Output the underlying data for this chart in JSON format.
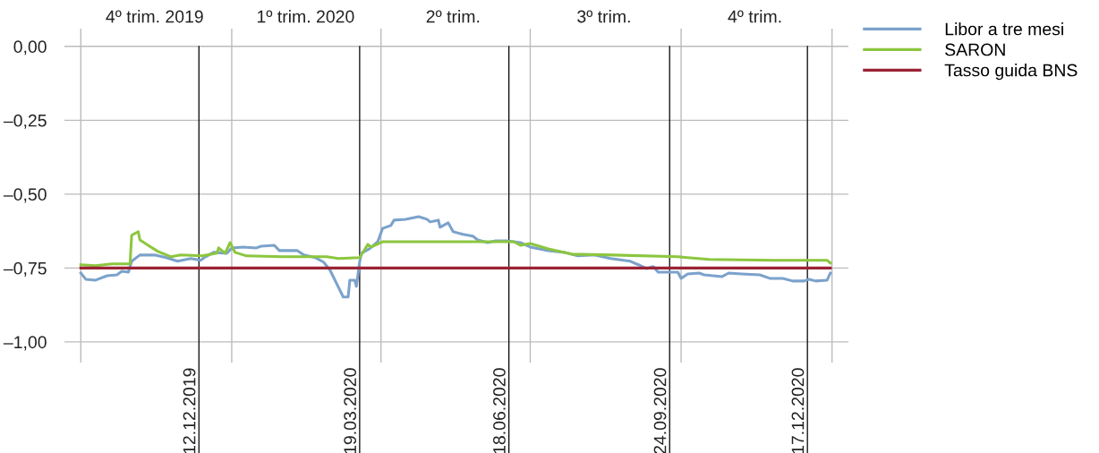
{
  "chart_data": {
    "type": "line",
    "xlim": [
      "2019-09-21",
      "2021-01-11"
    ],
    "ylim": [
      -1.07,
      0.06
    ],
    "xticks": [
      {
        "value": "2019-10-01",
        "label": null
      },
      {
        "value": "2019-11-15",
        "label": "4º trim. 2019"
      },
      {
        "value": "2020-01-01",
        "label": null
      },
      {
        "value": "2020-02-15",
        "label": "1º trim. 2020"
      },
      {
        "value": "2020-04-01",
        "label": null
      },
      {
        "value": "2020-05-15",
        "label": "2º trim."
      },
      {
        "value": "2020-07-01",
        "label": null
      },
      {
        "value": "2020-08-15",
        "label": "3º trim."
      },
      {
        "value": "2020-10-01",
        "label": null
      },
      {
        "value": "2020-11-15",
        "label": "4º trim."
      },
      {
        "value": "2021-01-01",
        "label": null
      }
    ],
    "yticks": [
      {
        "value": 0,
        "label": "0,00"
      },
      {
        "value": -0.25,
        "label": "–0,25"
      },
      {
        "value": -0.5,
        "label": "–0,50"
      },
      {
        "value": -0.75,
        "label": "–0,75"
      },
      {
        "value": -1.0,
        "label": "–1,00"
      }
    ],
    "grid": true,
    "legend": "top right",
    "marker": "none",
    "line_style": "solid",
    "ref_lines": [
      {
        "axis": "x",
        "value": "2019-12-12",
        "label": "12.12.2019",
        "color": "#000000"
      },
      {
        "axis": "x",
        "value": "2020-03-19",
        "label": "19.03.2020",
        "color": "#000000"
      },
      {
        "axis": "x",
        "value": "2020-06-18",
        "label": "18.06.2020",
        "color": "#000000"
      },
      {
        "axis": "x",
        "value": "2020-09-24",
        "label": "24.09.2020",
        "color": "#000000"
      },
      {
        "axis": "x",
        "value": "2020-12-17",
        "label": "17.12.2020",
        "color": "#000000"
      }
    ],
    "series": [
      {
        "name": "Libor a tre mesi",
        "color": "#7ba2cb",
        "x": [
          "2019-10-01",
          "2019-10-04",
          "2019-10-10",
          "2019-10-17",
          "2019-10-23",
          "2019-10-26",
          "2019-10-30",
          "2019-11-01",
          "2019-11-06",
          "2019-11-15",
          "2019-11-22",
          "2019-11-29",
          "2019-12-07",
          "2019-12-13",
          "2019-12-16",
          "2019-12-21",
          "2019-12-29",
          "2020-01-01",
          "2020-01-08",
          "2020-01-16",
          "2020-01-19",
          "2020-01-27",
          "2020-01-30",
          "2020-02-10",
          "2020-02-14",
          "2020-02-21",
          "2020-02-26",
          "2020-03-01",
          "2020-03-05",
          "2020-03-09",
          "2020-03-12",
          "2020-03-13",
          "2020-03-16",
          "2020-03-17",
          "2020-03-19",
          "2020-03-20",
          "2020-03-25",
          "2020-03-30",
          "2020-04-02",
          "2020-04-07",
          "2020-04-09",
          "2020-04-16",
          "2020-04-24",
          "2020-04-29",
          "2020-05-01",
          "2020-05-06",
          "2020-05-07",
          "2020-05-12",
          "2020-05-15",
          "2020-05-21",
          "2020-05-27",
          "2020-05-30",
          "2020-06-05",
          "2020-06-10",
          "2020-06-17",
          "2020-06-25",
          "2020-07-01",
          "2020-07-12",
          "2020-07-22",
          "2020-07-30",
          "2020-08-09",
          "2020-08-19",
          "2020-08-31",
          "2020-09-05",
          "2020-09-10",
          "2020-09-14",
          "2020-09-17",
          "2020-09-29",
          "2020-10-01",
          "2020-10-05",
          "2020-10-12",
          "2020-10-15",
          "2020-10-26",
          "2020-10-30",
          "2020-11-07",
          "2020-11-18",
          "2020-11-24",
          "2020-12-02",
          "2020-12-08",
          "2020-12-15",
          "2020-12-18",
          "2020-12-22",
          "2020-12-29",
          "2020-12-31"
        ],
        "values": [
          -0.767,
          -0.788,
          -0.791,
          -0.776,
          -0.773,
          -0.761,
          -0.764,
          -0.727,
          -0.706,
          -0.706,
          -0.715,
          -0.727,
          -0.718,
          -0.724,
          -0.712,
          -0.697,
          -0.7,
          -0.682,
          -0.679,
          -0.682,
          -0.676,
          -0.673,
          -0.691,
          -0.691,
          -0.706,
          -0.715,
          -0.73,
          -0.758,
          -0.803,
          -0.848,
          -0.848,
          -0.791,
          -0.791,
          -0.812,
          -0.73,
          -0.7,
          -0.685,
          -0.661,
          -0.616,
          -0.606,
          -0.588,
          -0.585,
          -0.576,
          -0.585,
          -0.594,
          -0.588,
          -0.612,
          -0.597,
          -0.627,
          -0.636,
          -0.642,
          -0.655,
          -0.664,
          -0.658,
          -0.658,
          -0.664,
          -0.679,
          -0.691,
          -0.697,
          -0.709,
          -0.706,
          -0.718,
          -0.727,
          -0.739,
          -0.752,
          -0.745,
          -0.764,
          -0.764,
          -0.785,
          -0.77,
          -0.767,
          -0.773,
          -0.779,
          -0.767,
          -0.77,
          -0.773,
          -0.785,
          -0.785,
          -0.794,
          -0.794,
          -0.788,
          -0.794,
          -0.791,
          -0.767
        ]
      },
      {
        "name": "SARON",
        "color": "#8cc63f",
        "x": [
          "2019-10-01",
          "2019-10-10",
          "2019-10-20",
          "2019-10-31",
          "2019-11-01",
          "2019-11-05",
          "2019-11-06",
          "2019-11-11",
          "2019-11-17",
          "2019-11-25",
          "2019-12-01",
          "2019-12-14",
          "2019-12-23",
          "2019-12-24",
          "2019-12-28",
          "2019-12-31",
          "2020-01-03",
          "2020-01-10",
          "2020-02-01",
          "2020-02-28",
          "2020-03-06",
          "2020-03-19",
          "2020-03-24",
          "2020-03-26",
          "2020-04-02",
          "2020-05-15",
          "2020-06-21",
          "2020-06-25",
          "2020-07-01",
          "2020-07-12",
          "2020-07-26",
          "2020-08-21",
          "2020-09-29",
          "2020-10-18",
          "2020-11-26",
          "2020-12-29",
          "2020-12-31"
        ],
        "values": [
          -0.739,
          -0.742,
          -0.736,
          -0.736,
          -0.639,
          -0.627,
          -0.655,
          -0.673,
          -0.694,
          -0.712,
          -0.706,
          -0.709,
          -0.7,
          -0.682,
          -0.7,
          -0.664,
          -0.697,
          -0.709,
          -0.712,
          -0.712,
          -0.718,
          -0.715,
          -0.67,
          -0.679,
          -0.661,
          -0.661,
          -0.661,
          -0.673,
          -0.667,
          -0.685,
          -0.703,
          -0.706,
          -0.712,
          -0.721,
          -0.724,
          -0.724,
          -0.733
        ]
      },
      {
        "name": "Tasso guida BNS",
        "color": "#9b2335",
        "x": [
          "2019-10-01",
          "2020-12-31"
        ],
        "values": [
          -0.75,
          -0.75
        ]
      }
    ]
  }
}
